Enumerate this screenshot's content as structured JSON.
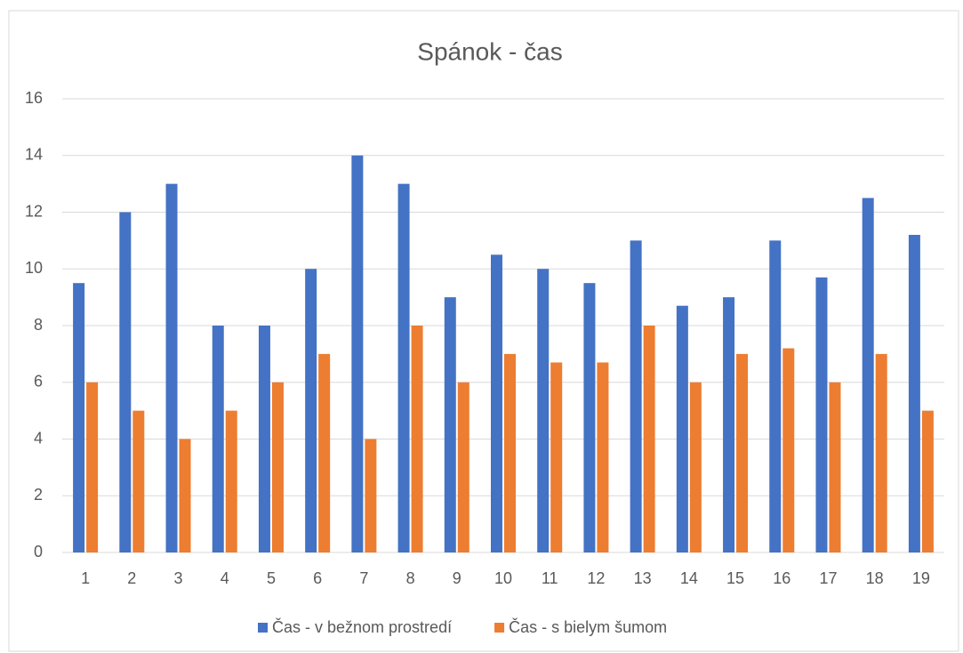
{
  "chart_data": {
    "type": "bar",
    "title": "Spánok - čas",
    "categories": [
      "1",
      "2",
      "3",
      "4",
      "5",
      "6",
      "7",
      "8",
      "9",
      "10",
      "11",
      "12",
      "13",
      "14",
      "15",
      "16",
      "17",
      "18",
      "19"
    ],
    "series": [
      {
        "name": "Čas - v bežnom prostredí",
        "color": "#4472c4",
        "values": [
          9.5,
          12,
          13,
          8,
          8,
          10,
          14,
          13,
          9,
          10.5,
          10,
          9.5,
          11,
          8.7,
          9,
          11,
          9.7,
          12.5,
          11.2
        ]
      },
      {
        "name": "Čas - s bielym šumom",
        "color": "#ed7d31",
        "values": [
          6,
          5,
          4,
          5,
          6,
          7,
          4,
          8,
          6,
          7,
          6.7,
          6.7,
          8,
          6,
          7,
          7.2,
          6,
          7,
          5
        ]
      }
    ],
    "ylim": [
      0,
      16
    ],
    "yticks": [
      0,
      2,
      4,
      6,
      8,
      10,
      12,
      14,
      16
    ],
    "grid": true,
    "legend": "bottom"
  }
}
